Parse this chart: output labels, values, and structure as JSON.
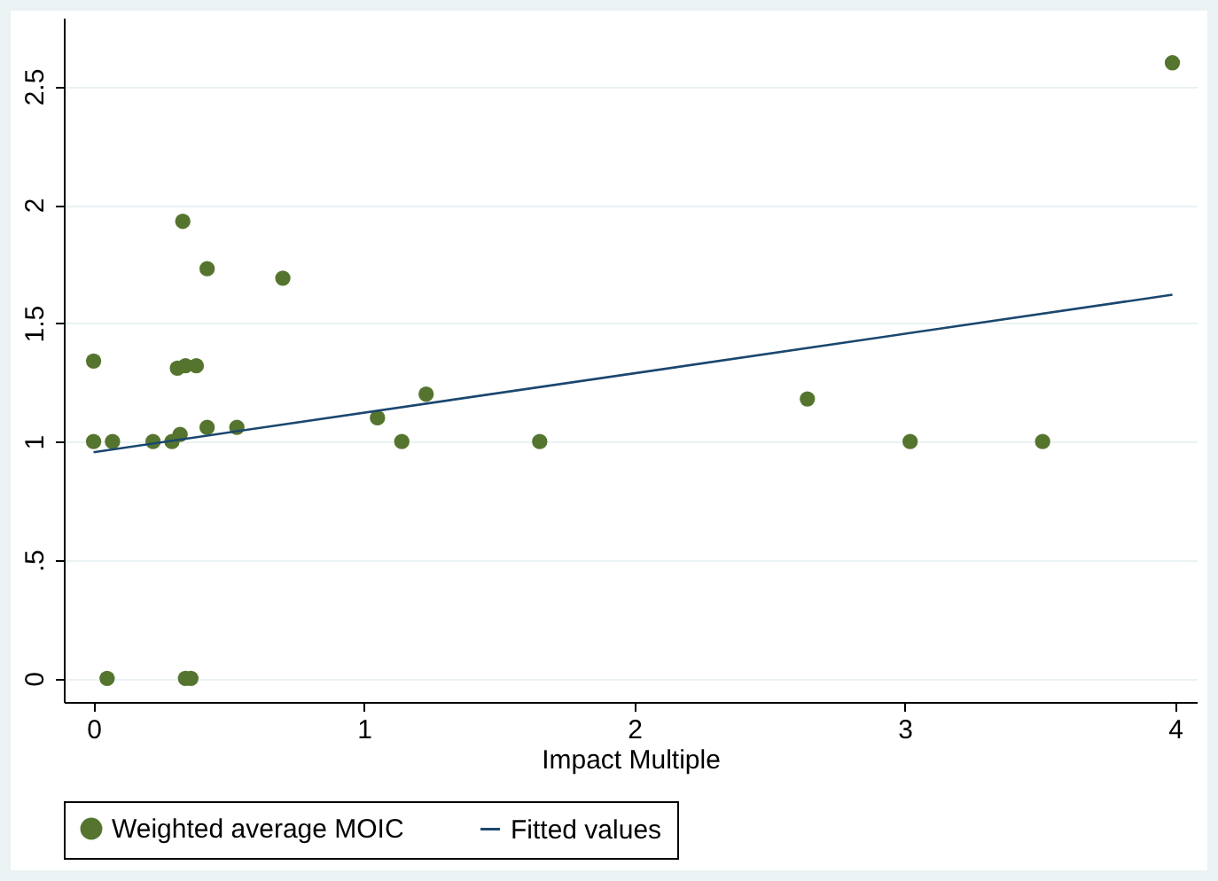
{
  "chart_data": {
    "type": "scatter",
    "xlabel": "Impact Multiple",
    "xlim": [
      -0.11,
      4.08
    ],
    "ylim": [
      -0.1,
      2.79
    ],
    "xticks": [
      0,
      1,
      2,
      3,
      4
    ],
    "yticks": [
      0,
      {
        "value": 0.5,
        "label": ".5"
      },
      1,
      1.5,
      2,
      2.5
    ],
    "grid": "y",
    "legend": "bottom",
    "series": [
      {
        "name": "Weighted average MOIC",
        "color": "#55752f",
        "marker": "circle",
        "x": [
          0,
          0,
          0.05,
          0.07,
          0.22,
          0.29,
          0.32,
          0.33,
          0.31,
          0.34,
          0.38,
          0.34,
          0.36,
          0.42,
          0.42,
          0.53,
          0.7,
          1.05,
          1.14,
          1.23,
          1.65,
          2.64,
          3.02,
          3.51,
          3.99
        ],
        "values": [
          1.34,
          1,
          0,
          1,
          1,
          1,
          1.03,
          1.93,
          1.31,
          1.32,
          1.32,
          0,
          0,
          1.06,
          1.73,
          1.06,
          1.69,
          1.1,
          1,
          1.2,
          1,
          1.18,
          1,
          1,
          2.6
        ]
      },
      {
        "name": "Fitted values",
        "type": "line",
        "marker": "none",
        "color": "#1a476f",
        "x": [
          0,
          3.99
        ],
        "values": [
          0.955,
          1.62
        ]
      }
    ]
  }
}
